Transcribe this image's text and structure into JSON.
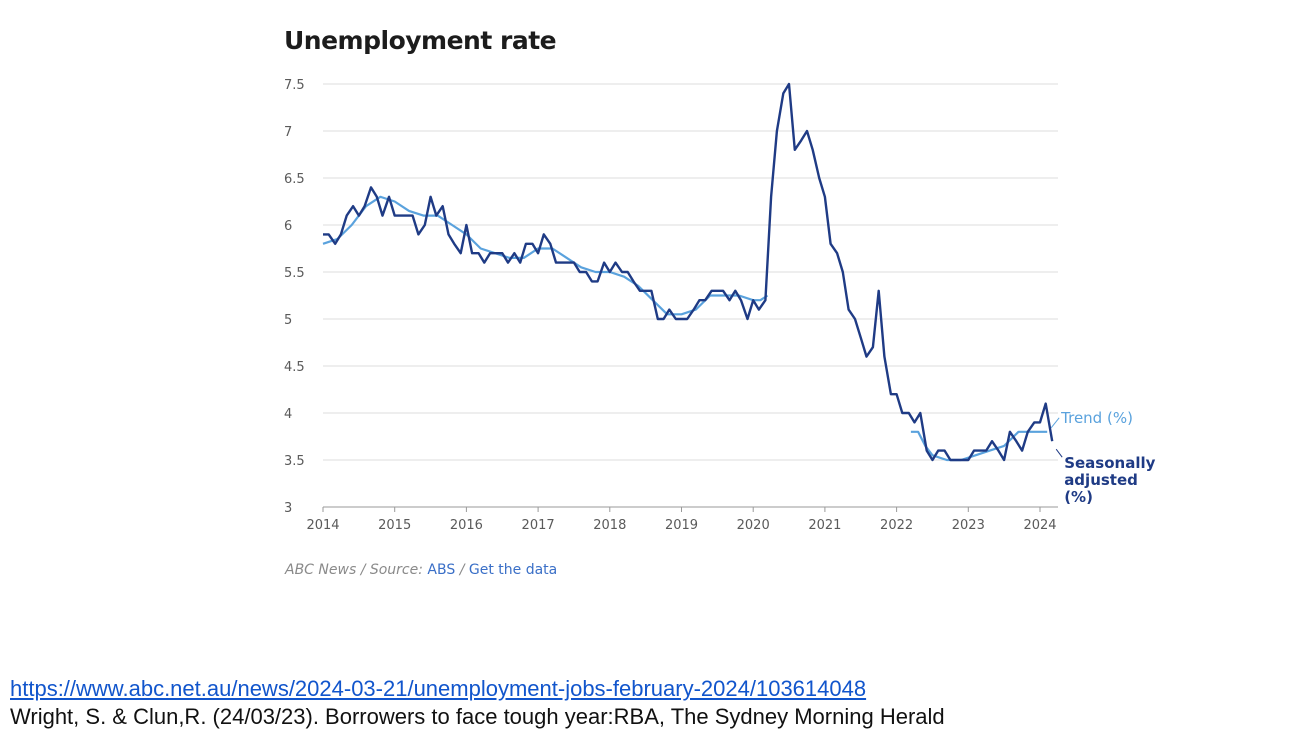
{
  "chart_data": {
    "type": "line",
    "title": "Unemployment rate",
    "ylim": [
      3,
      7.5
    ],
    "xlim": [
      2014,
      2024.2
    ],
    "yticks": [
      "7.5",
      "7",
      "6.5",
      "6",
      "5.5",
      "5",
      "4.5",
      "4",
      "3.5",
      "3"
    ],
    "xticks": [
      "2014",
      "2015",
      "2016",
      "2017",
      "2018",
      "2019",
      "2020",
      "2021",
      "2022",
      "2023",
      "2024"
    ],
    "grid": "horizontal",
    "legend": "right-end labels",
    "series": [
      {
        "name": "Trend (%)",
        "color": "#5aa2dd",
        "points": [
          [
            2014.0,
            5.8
          ],
          [
            2014.2,
            5.85
          ],
          [
            2014.4,
            6.0
          ],
          [
            2014.6,
            6.2
          ],
          [
            2014.8,
            6.3
          ],
          [
            2015.0,
            6.25
          ],
          [
            2015.2,
            6.15
          ],
          [
            2015.4,
            6.1
          ],
          [
            2015.6,
            6.1
          ],
          [
            2015.8,
            6.0
          ],
          [
            2016.0,
            5.9
          ],
          [
            2016.2,
            5.75
          ],
          [
            2016.4,
            5.7
          ],
          [
            2016.6,
            5.65
          ],
          [
            2016.8,
            5.65
          ],
          [
            2017.0,
            5.75
          ],
          [
            2017.2,
            5.75
          ],
          [
            2017.4,
            5.65
          ],
          [
            2017.6,
            5.55
          ],
          [
            2017.8,
            5.5
          ],
          [
            2018.0,
            5.5
          ],
          [
            2018.2,
            5.45
          ],
          [
            2018.4,
            5.35
          ],
          [
            2018.6,
            5.2
          ],
          [
            2018.8,
            5.05
          ],
          [
            2019.0,
            5.05
          ],
          [
            2019.2,
            5.1
          ],
          [
            2019.4,
            5.25
          ],
          [
            2019.6,
            5.25
          ],
          [
            2019.8,
            5.25
          ],
          [
            2020.0,
            5.2
          ],
          [
            2020.1,
            5.2
          ],
          [
            2020.2,
            5.25
          ]
        ]
      },
      {
        "name": "Trend (%)",
        "color": "#5aa2dd",
        "points": [
          [
            2022.2,
            3.8
          ],
          [
            2022.3,
            3.8
          ],
          [
            2022.4,
            3.65
          ],
          [
            2022.5,
            3.55
          ],
          [
            2022.7,
            3.5
          ],
          [
            2022.9,
            3.5
          ],
          [
            2023.1,
            3.55
          ],
          [
            2023.3,
            3.6
          ],
          [
            2023.5,
            3.65
          ],
          [
            2023.7,
            3.8
          ],
          [
            2023.9,
            3.8
          ],
          [
            2024.05,
            3.8
          ],
          [
            2024.1,
            3.8
          ]
        ]
      },
      {
        "name": "Seasonally adjusted (%)",
        "color": "#1f3b85",
        "points": [
          [
            2014.0,
            5.9
          ],
          [
            2014.08,
            5.9
          ],
          [
            2014.17,
            5.8
          ],
          [
            2014.25,
            5.9
          ],
          [
            2014.33,
            6.1
          ],
          [
            2014.42,
            6.2
          ],
          [
            2014.5,
            6.1
          ],
          [
            2014.58,
            6.2
          ],
          [
            2014.67,
            6.4
          ],
          [
            2014.75,
            6.3
          ],
          [
            2014.83,
            6.1
          ],
          [
            2014.92,
            6.3
          ],
          [
            2015.0,
            6.1
          ],
          [
            2015.08,
            6.1
          ],
          [
            2015.17,
            6.1
          ],
          [
            2015.25,
            6.1
          ],
          [
            2015.33,
            5.9
          ],
          [
            2015.42,
            6.0
          ],
          [
            2015.5,
            6.3
          ],
          [
            2015.58,
            6.1
          ],
          [
            2015.67,
            6.2
          ],
          [
            2015.75,
            5.9
          ],
          [
            2015.83,
            5.8
          ],
          [
            2015.92,
            5.7
          ],
          [
            2016.0,
            6.0
          ],
          [
            2016.08,
            5.7
          ],
          [
            2016.17,
            5.7
          ],
          [
            2016.25,
            5.6
          ],
          [
            2016.33,
            5.7
          ],
          [
            2016.42,
            5.7
          ],
          [
            2016.5,
            5.7
          ],
          [
            2016.58,
            5.6
          ],
          [
            2016.67,
            5.7
          ],
          [
            2016.75,
            5.6
          ],
          [
            2016.83,
            5.8
          ],
          [
            2016.92,
            5.8
          ],
          [
            2017.0,
            5.7
          ],
          [
            2017.08,
            5.9
          ],
          [
            2017.17,
            5.8
          ],
          [
            2017.25,
            5.6
          ],
          [
            2017.33,
            5.6
          ],
          [
            2017.42,
            5.6
          ],
          [
            2017.5,
            5.6
          ],
          [
            2017.58,
            5.5
          ],
          [
            2017.67,
            5.5
          ],
          [
            2017.75,
            5.4
          ],
          [
            2017.83,
            5.4
          ],
          [
            2017.92,
            5.6
          ],
          [
            2018.0,
            5.5
          ],
          [
            2018.08,
            5.6
          ],
          [
            2018.17,
            5.5
          ],
          [
            2018.25,
            5.5
          ],
          [
            2018.33,
            5.4
          ],
          [
            2018.42,
            5.3
          ],
          [
            2018.5,
            5.3
          ],
          [
            2018.58,
            5.3
          ],
          [
            2018.67,
            5.0
          ],
          [
            2018.75,
            5.0
          ],
          [
            2018.83,
            5.1
          ],
          [
            2018.92,
            5.0
          ],
          [
            2019.0,
            5.0
          ],
          [
            2019.08,
            5.0
          ],
          [
            2019.17,
            5.1
          ],
          [
            2019.25,
            5.2
          ],
          [
            2019.33,
            5.2
          ],
          [
            2019.42,
            5.3
          ],
          [
            2019.5,
            5.3
          ],
          [
            2019.58,
            5.3
          ],
          [
            2019.67,
            5.2
          ],
          [
            2019.75,
            5.3
          ],
          [
            2019.83,
            5.2
          ],
          [
            2019.92,
            5.0
          ],
          [
            2020.0,
            5.2
          ],
          [
            2020.08,
            5.1
          ],
          [
            2020.17,
            5.2
          ],
          [
            2020.25,
            6.3
          ],
          [
            2020.33,
            7.0
          ],
          [
            2020.42,
            7.4
          ],
          [
            2020.5,
            7.5
          ],
          [
            2020.58,
            6.8
          ],
          [
            2020.67,
            6.9
          ],
          [
            2020.75,
            7.0
          ],
          [
            2020.83,
            6.8
          ],
          [
            2020.92,
            6.5
          ],
          [
            2021.0,
            6.3
          ],
          [
            2021.08,
            5.8
          ],
          [
            2021.17,
            5.7
          ],
          [
            2021.25,
            5.5
          ],
          [
            2021.33,
            5.1
          ],
          [
            2021.42,
            5.0
          ],
          [
            2021.5,
            4.8
          ],
          [
            2021.58,
            4.6
          ],
          [
            2021.67,
            4.7
          ],
          [
            2021.75,
            5.3
          ],
          [
            2021.83,
            4.6
          ],
          [
            2021.92,
            4.2
          ],
          [
            2022.0,
            4.2
          ],
          [
            2022.08,
            4.0
          ],
          [
            2022.17,
            4.0
          ],
          [
            2022.25,
            3.9
          ],
          [
            2022.33,
            4.0
          ],
          [
            2022.42,
            3.6
          ],
          [
            2022.5,
            3.5
          ],
          [
            2022.58,
            3.6
          ],
          [
            2022.67,
            3.6
          ],
          [
            2022.75,
            3.5
          ],
          [
            2022.83,
            3.5
          ],
          [
            2022.92,
            3.5
          ],
          [
            2023.0,
            3.5
          ],
          [
            2023.08,
            3.6
          ],
          [
            2023.17,
            3.6
          ],
          [
            2023.25,
            3.6
          ],
          [
            2023.33,
            3.7
          ],
          [
            2023.42,
            3.6
          ],
          [
            2023.5,
            3.5
          ],
          [
            2023.58,
            3.8
          ],
          [
            2023.67,
            3.7
          ],
          [
            2023.75,
            3.6
          ],
          [
            2023.83,
            3.8
          ],
          [
            2023.92,
            3.9
          ],
          [
            2024.0,
            3.9
          ],
          [
            2024.08,
            4.1
          ],
          [
            2024.17,
            3.7
          ]
        ]
      }
    ],
    "labels": {
      "trend": "Trend (%)",
      "sa_line1": "Seasonally",
      "sa_line2": "adjusted",
      "sa_line3": "(%)"
    }
  },
  "source": {
    "prefix": "ABC News / Source: ",
    "source_link": "ABS",
    "separator": " / ",
    "data_link": "Get the data"
  },
  "reference": {
    "url": "https://www.abc.net.au/news/2024-03-21/unemployment-jobs-february-2024/103614048",
    "citation": "Wright, S. & Clun,R. (24/03/23). Borrowers to face tough year:RBA, The Sydney Morning Herald"
  }
}
